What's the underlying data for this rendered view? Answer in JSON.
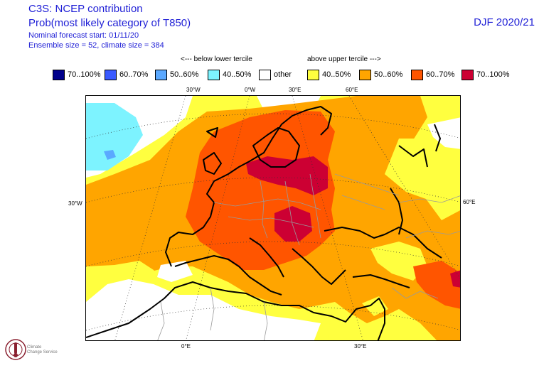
{
  "header": {
    "line1": "C3S: NCEP contribution",
    "line2": "Prob(most likely category of T850)",
    "line3": "Nominal forecast start: 01/11/20",
    "line4": "Ensemble size = 52, climate size = 384",
    "season": "DJF 2020/21"
  },
  "legend": {
    "below_label": "<--- below lower tercile",
    "above_label": "above upper tercile --->",
    "items": [
      {
        "label": "70..100%",
        "color": "#00008b"
      },
      {
        "label": "60..70%",
        "color": "#3a5aff"
      },
      {
        "label": "50..60%",
        "color": "#5aa8ff"
      },
      {
        "label": "40..50%",
        "color": "#7df3ff"
      },
      {
        "label": "other",
        "color": "#ffffff"
      },
      {
        "label": "40..50%",
        "color": "#ffff3f"
      },
      {
        "label": "50..60%",
        "color": "#ffa500"
      },
      {
        "label": "60..70%",
        "color": "#ff5500"
      },
      {
        "label": "70..100%",
        "color": "#cc0033"
      }
    ]
  },
  "axis_labels": {
    "top": [
      "30°W",
      "0°W",
      "30°E",
      "60°E"
    ],
    "left": "30°W",
    "right": "60°E",
    "bottom": [
      "0°E",
      "30°E"
    ]
  },
  "logo": {
    "line1": "Climate",
    "line2": "Change Service"
  }
}
